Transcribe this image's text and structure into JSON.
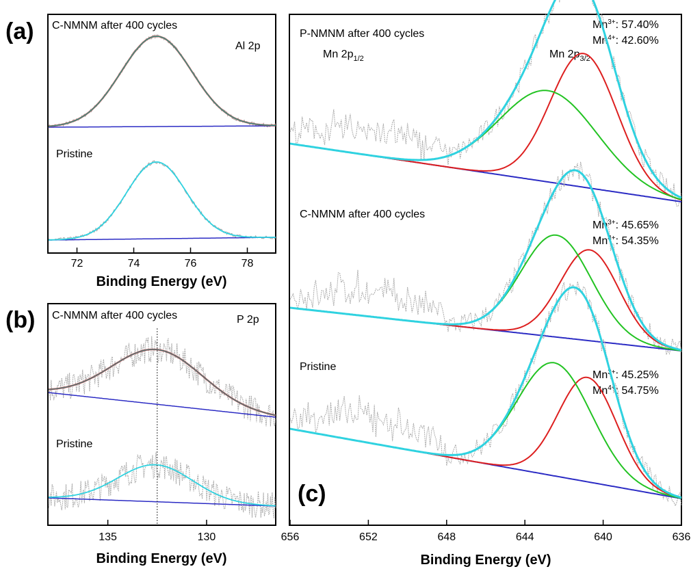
{
  "panels": {
    "a": {
      "letter": "(a)",
      "element": "Al 2p",
      "label_top": "C-NMNM after 400 cycles",
      "label_bottom": "Pristine"
    },
    "b": {
      "letter": "(b)",
      "element": "P 2p",
      "label_top": "C-NMNM after 400 cycles",
      "label_bottom": "Pristine"
    },
    "c": {
      "letter": "(c)",
      "label_top": "P-NMNM after 400 cycles",
      "label_mid": "C-NMNM after 400 cycles",
      "label_bottom": "Pristine",
      "mn2p12": "Mn 2p",
      "mn2p12_sub": "1/2",
      "mn2p32": "Mn 2p",
      "mn2p32_sub": "3/2",
      "ratios": [
        {
          "mn3": "Mn",
          "mn3_sup": "3+",
          "mn3_val": ": 57.40%",
          "mn4": "Mn",
          "mn4_sup": "4+",
          "mn4_val": ": 42.60%"
        },
        {
          "mn3": "Mn",
          "mn3_sup": "3+",
          "mn3_val": ": 45.65%",
          "mn4": "Mn",
          "mn4_sup": "4+",
          "mn4_val": ": 54.35%"
        },
        {
          "mn3": "Mn",
          "mn3_sup": "3+",
          "mn3_val": ": 45.25%",
          "mn4": "Mn",
          "mn4_sup": "4+",
          "mn4_val": ": 54.75%"
        }
      ]
    }
  },
  "colors": {
    "raw": "#a9a9a9",
    "envelope": "#2fd2e0",
    "mn3": "#dd1f1f",
    "mn4": "#22c322",
    "background": "#2b2bc4",
    "red_fit": "#c94a4a"
  },
  "chart_data": [
    {
      "panel": "a",
      "type": "line",
      "title": "",
      "xlabel": "Binding Energy (eV)",
      "ylabel": "",
      "xlim": [
        71,
        79
      ],
      "xticks": [
        72,
        74,
        76,
        78
      ],
      "tick_labels": [
        "72",
        "74",
        "76",
        "78"
      ],
      "series": [
        {
          "stack": "top",
          "component": "fit",
          "center": 74.8,
          "sigma": 1.25,
          "amp": 1.0
        },
        {
          "stack": "bottom",
          "component": "fit",
          "center": 74.8,
          "sigma": 1.05,
          "amp": 0.92
        }
      ]
    },
    {
      "panel": "b",
      "type": "line",
      "title": "",
      "xlabel": "Binding Energy (eV)",
      "ylabel": "",
      "xlim": [
        138,
        126.5
      ],
      "xticks": [
        135,
        130
      ],
      "tick_labels": [
        "135",
        "130"
      ],
      "reference_line": 132.5,
      "series": [
        {
          "stack": "top",
          "component": "fit",
          "center": 132.5,
          "sigma": 2.3,
          "amp": 1.0
        },
        {
          "stack": "bottom",
          "component": "fit",
          "center": 132.6,
          "sigma": 1.9,
          "amp": 0.75
        }
      ]
    },
    {
      "panel": "c",
      "type": "line",
      "title": "",
      "xlabel": "Binding Energy (eV)",
      "ylabel": "",
      "xlim": [
        656,
        636
      ],
      "xticks": [
        656,
        652,
        648,
        644,
        640,
        636
      ],
      "tick_labels": [
        "656",
        "652",
        "648",
        "644",
        "640",
        "636"
      ],
      "series": [
        {
          "stack": "top",
          "component": "Mn3+",
          "center": 641.0,
          "sigma": 1.7,
          "amp": 0.85
        },
        {
          "stack": "top",
          "component": "Mn4+",
          "center": 642.8,
          "sigma": 2.5,
          "amp": 0.58
        },
        {
          "stack": "mid",
          "component": "Mn3+",
          "center": 640.7,
          "sigma": 1.5,
          "amp": 0.82
        },
        {
          "stack": "mid",
          "component": "Mn4+",
          "center": 642.4,
          "sigma": 1.8,
          "amp": 0.92
        },
        {
          "stack": "bottom",
          "component": "Mn3+",
          "center": 640.8,
          "sigma": 1.5,
          "amp": 0.72
        },
        {
          "stack": "bottom",
          "component": "Mn4+",
          "center": 642.5,
          "sigma": 1.9,
          "amp": 0.78
        }
      ]
    }
  ]
}
